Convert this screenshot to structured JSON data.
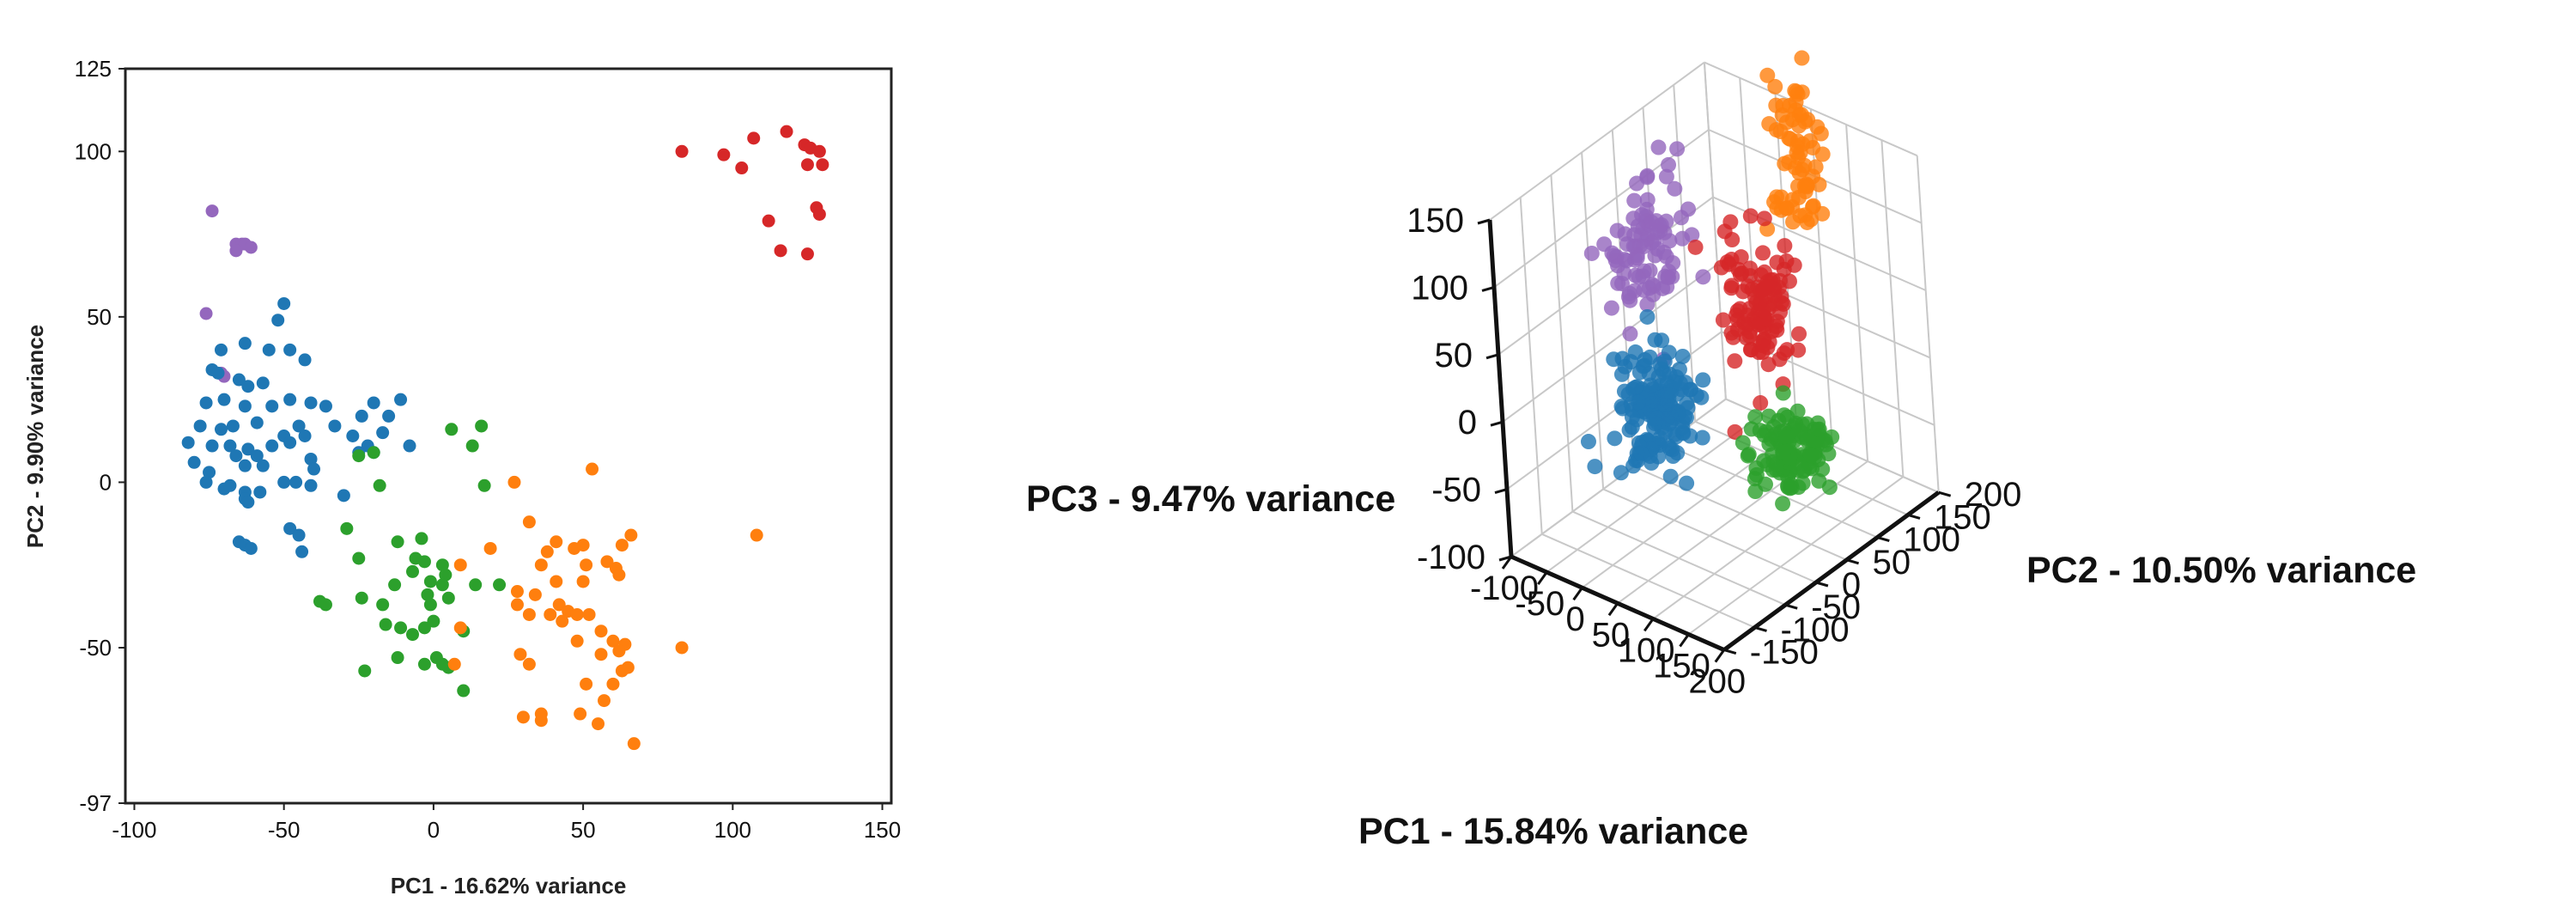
{
  "colors": {
    "blue": "#1f77b4",
    "orange": "#ff7f0e",
    "green": "#2ca02c",
    "red": "#d62728",
    "purple": "#9467bd"
  },
  "chart_data": [
    {
      "type": "scatter",
      "xlabel": "PC1 - 16.62% variance",
      "ylabel": "PC2 - 9.90% variance",
      "xlim": [
        -103,
        153
      ],
      "ylim": [
        -97,
        125
      ],
      "xticks": [
        "-100",
        "-50",
        "0",
        "50",
        "100",
        "150"
      ],
      "xtick_values": [
        -100,
        -50,
        0,
        50,
        100,
        150
      ],
      "yticks": [
        "125",
        "100",
        "50",
        "0",
        "-50",
        "-97"
      ],
      "ytick_values": [
        125,
        100,
        50,
        0,
        -50,
        -97
      ],
      "grid": false,
      "series": [
        {
          "color": "red",
          "points": [
            [
              83,
              100
            ],
            [
              97,
              99
            ],
            [
              103,
              95
            ],
            [
              107,
              104
            ],
            [
              118,
              106
            ],
            [
              124,
              102
            ],
            [
              126,
              101
            ],
            [
              129,
              100
            ],
            [
              130,
              96
            ],
            [
              125,
              96
            ],
            [
              128,
              83
            ],
            [
              129,
              81
            ],
            [
              112,
              79
            ],
            [
              116,
              70
            ],
            [
              125,
              69
            ]
          ]
        },
        {
          "color": "purple",
          "points": [
            [
              -74,
              82
            ],
            [
              -66,
              72
            ],
            [
              -64,
              72
            ],
            [
              -63,
              72
            ],
            [
              -66,
              70
            ],
            [
              -61,
              71
            ],
            [
              -76,
              51
            ],
            [
              -71,
              33
            ],
            [
              -70,
              32
            ]
          ]
        },
        {
          "color": "blue",
          "points": [
            [
              -50,
              54
            ],
            [
              -52,
              49
            ],
            [
              -71,
              40
            ],
            [
              -63,
              42
            ],
            [
              -55,
              40
            ],
            [
              -48,
              40
            ],
            [
              -43,
              37
            ],
            [
              -74,
              34
            ],
            [
              -72,
              33
            ],
            [
              -65,
              31
            ],
            [
              -57,
              30
            ],
            [
              -62,
              29
            ],
            [
              -76,
              24
            ],
            [
              -70,
              25
            ],
            [
              -63,
              23
            ],
            [
              -54,
              23
            ],
            [
              -48,
              25
            ],
            [
              -41,
              24
            ],
            [
              -36,
              23
            ],
            [
              -20,
              24
            ],
            [
              -11,
              25
            ],
            [
              -24,
              20
            ],
            [
              -15,
              20
            ],
            [
              -33,
              17
            ],
            [
              -78,
              17
            ],
            [
              -71,
              16
            ],
            [
              -67,
              17
            ],
            [
              -59,
              18
            ],
            [
              -50,
              14
            ],
            [
              -45,
              17
            ],
            [
              -43,
              14
            ],
            [
              -82,
              12
            ],
            [
              -74,
              11
            ],
            [
              -68,
              11
            ],
            [
              -62,
              10
            ],
            [
              -59,
              8
            ],
            [
              -54,
              11
            ],
            [
              -48,
              12
            ],
            [
              -27,
              14
            ],
            [
              -17,
              15
            ],
            [
              -22,
              11
            ],
            [
              -20,
              9
            ],
            [
              -8,
              11
            ],
            [
              -80,
              6
            ],
            [
              -75,
              3
            ],
            [
              -66,
              8
            ],
            [
              -63,
              5
            ],
            [
              -57,
              5
            ],
            [
              -41,
              7
            ],
            [
              -40,
              4
            ],
            [
              -25,
              9
            ],
            [
              -76,
              0
            ],
            [
              -70,
              -2
            ],
            [
              -68,
              -1
            ],
            [
              -63,
              -3
            ],
            [
              -58,
              -3
            ],
            [
              -50,
              0
            ],
            [
              -46,
              0
            ],
            [
              -41,
              -1
            ],
            [
              -30,
              -4
            ],
            [
              -63,
              -5
            ],
            [
              -62,
              -6
            ],
            [
              -65,
              -18
            ],
            [
              -63,
              -19
            ],
            [
              -61,
              -20
            ],
            [
              -48,
              -14
            ],
            [
              -45,
              -16
            ],
            [
              -44,
              -21
            ]
          ]
        },
        {
          "color": "green",
          "points": [
            [
              6,
              16
            ],
            [
              16,
              17
            ],
            [
              -25,
              8
            ],
            [
              -20,
              9
            ],
            [
              13,
              11
            ],
            [
              -18,
              -1
            ],
            [
              17,
              -1
            ],
            [
              -29,
              -14
            ],
            [
              -12,
              -18
            ],
            [
              -4,
              -17
            ],
            [
              -25,
              -23
            ],
            [
              -6,
              -23
            ],
            [
              -3,
              -24
            ],
            [
              -7,
              -27
            ],
            [
              3,
              -25
            ],
            [
              4,
              -28
            ],
            [
              -1,
              -30
            ],
            [
              3,
              -31
            ],
            [
              -13,
              -31
            ],
            [
              14,
              -31
            ],
            [
              -38,
              -36
            ],
            [
              -36,
              -37
            ],
            [
              -24,
              -35
            ],
            [
              -17,
              -37
            ],
            [
              -2,
              -34
            ],
            [
              -1,
              -37
            ],
            [
              5,
              -35
            ],
            [
              22,
              -31
            ],
            [
              -16,
              -43
            ],
            [
              -11,
              -44
            ],
            [
              -7,
              -46
            ],
            [
              -3,
              -44
            ],
            [
              0,
              -42
            ],
            [
              10,
              -45
            ],
            [
              -12,
              -53
            ],
            [
              1,
              -53
            ],
            [
              3,
              -55
            ],
            [
              5,
              -56
            ],
            [
              10,
              -63
            ],
            [
              -23,
              -57
            ],
            [
              -3,
              -55
            ]
          ]
        },
        {
          "color": "orange",
          "points": [
            [
              53,
              4
            ],
            [
              27,
              0
            ],
            [
              32,
              -12
            ],
            [
              108,
              -16
            ],
            [
              41,
              -18
            ],
            [
              38,
              -21
            ],
            [
              50,
              -19
            ],
            [
              63,
              -19
            ],
            [
              66,
              -16
            ],
            [
              19,
              -20
            ],
            [
              36,
              -25
            ],
            [
              47,
              -20
            ],
            [
              51,
              -25
            ],
            [
              58,
              -24
            ],
            [
              61,
              -26
            ],
            [
              62,
              -28
            ],
            [
              9,
              -25
            ],
            [
              28,
              -33
            ],
            [
              34,
              -34
            ],
            [
              41,
              -30
            ],
            [
              50,
              -30
            ],
            [
              28,
              -37
            ],
            [
              32,
              -40
            ],
            [
              39,
              -40
            ],
            [
              42,
              -37
            ],
            [
              45,
              -39
            ],
            [
              43,
              -42
            ],
            [
              48,
              -40
            ],
            [
              52,
              -40
            ],
            [
              56,
              -45
            ],
            [
              60,
              -48
            ],
            [
              64,
              -49
            ],
            [
              83,
              -50
            ],
            [
              9,
              -44
            ],
            [
              29,
              -52
            ],
            [
              32,
              -55
            ],
            [
              48,
              -48
            ],
            [
              56,
              -52
            ],
            [
              62,
              -51
            ],
            [
              7,
              -55
            ],
            [
              51,
              -61
            ],
            [
              60,
              -61
            ],
            [
              65,
              -56
            ],
            [
              63,
              -57
            ],
            [
              57,
              -66
            ],
            [
              30,
              -71
            ],
            [
              36,
              -70
            ],
            [
              36,
              -72
            ],
            [
              49,
              -70
            ],
            [
              55,
              -73
            ],
            [
              67,
              -79
            ]
          ]
        }
      ]
    },
    {
      "type": "scatter",
      "xlabel": "PC1 - 15.84% variance",
      "ylabel": "PC2 - 10.50% variance",
      "zlabel": "PC3 - 9.47% variance",
      "xlim": [
        -100,
        200
      ],
      "ylim": [
        -150,
        200
      ],
      "zlim": [
        -100,
        150
      ],
      "xticks": [
        "-100",
        "-50",
        "0",
        "50",
        "100",
        "150",
        "200"
      ],
      "yticks": [
        "-150",
        "-100",
        "-50",
        "0",
        "50",
        "100",
        "150",
        "200"
      ],
      "zticks": [
        "-100",
        "-50",
        "0",
        "50",
        "100",
        "150"
      ],
      "grid": true,
      "clusters": [
        {
          "color": "orange",
          "center": [
            70,
            150,
            135
          ],
          "spread": [
            12,
            18,
            30
          ],
          "count": 70
        },
        {
          "color": "purple",
          "center": [
            -80,
            70,
            60
          ],
          "spread": [
            15,
            30,
            25
          ],
          "count": 90
        },
        {
          "color": "red",
          "center": [
            50,
            100,
            35
          ],
          "spread": [
            18,
            18,
            28
          ],
          "count": 110
        },
        {
          "color": "blue",
          "center": [
            -15,
            0,
            -20
          ],
          "spread": [
            22,
            22,
            20
          ],
          "count": 160
        },
        {
          "color": "green",
          "center": [
            160,
            20,
            -20
          ],
          "spread": [
            20,
            20,
            14
          ],
          "count": 120
        }
      ]
    }
  ]
}
